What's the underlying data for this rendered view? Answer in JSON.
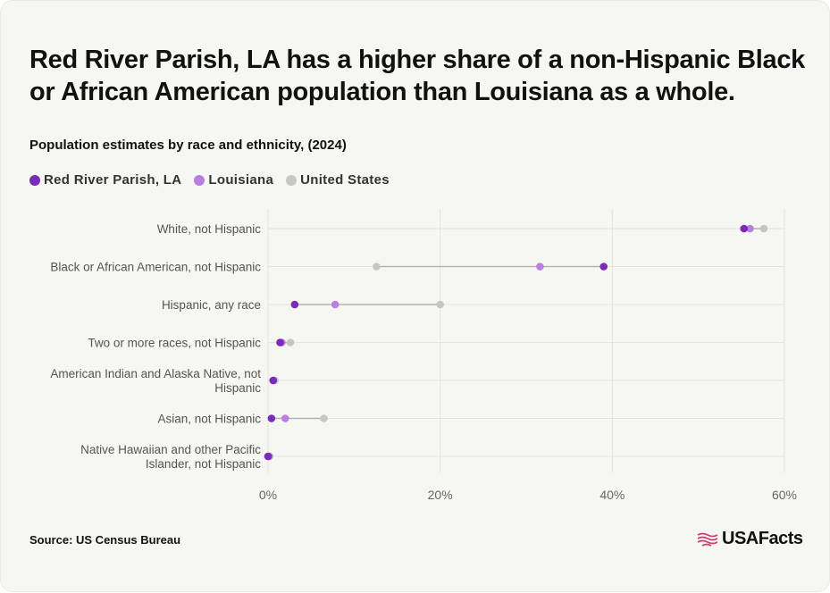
{
  "title": "Red River Parish, LA has a higher share of a non-Hispanic Black or African American population than Louisiana as a whole.",
  "subtitle": "Population estimates by race and ethnicity, (2024)",
  "source": "Source: US Census Bureau",
  "brand": "USAFacts",
  "colors": {
    "red_river": "#7b2bb5",
    "louisiana": "#b97fe0",
    "united_states": "#c6c6c2",
    "connector": "#b3b3b0",
    "grid": "#e3e3de",
    "brand_flag": "#d13b6f"
  },
  "chart_data": {
    "type": "scatter",
    "orientation": "horizontal-dot-plot",
    "title": "Red River Parish, LA has a higher share of a non-Hispanic Black or African American population than Louisiana as a whole.",
    "subtitle": "Population estimates by race and ethnicity, (2024)",
    "categories": [
      [
        "White, not Hispanic"
      ],
      [
        "Black or African American, not Hispanic"
      ],
      [
        "Hispanic, any race"
      ],
      [
        "Two or more races, not Hispanic"
      ],
      [
        "American Indian and Alaska Native, not",
        "Hispanic"
      ],
      [
        "Asian, not Hispanic"
      ],
      [
        "Native Hawaiian and other Pacific",
        "Islander, not Hispanic"
      ]
    ],
    "series": [
      {
        "name": "Red River Parish, LA",
        "color": "#7b2bb5",
        "values": [
          55.3,
          39.0,
          3.1,
          1.4,
          0.6,
          0.4,
          0.0
        ]
      },
      {
        "name": "Louisiana",
        "color": "#b97fe0",
        "values": [
          56.0,
          31.6,
          7.8,
          1.6,
          0.6,
          2.0,
          0.1
        ]
      },
      {
        "name": "United States",
        "color": "#c6c6c2",
        "values": [
          57.6,
          12.6,
          20.0,
          2.6,
          0.8,
          6.5,
          0.2
        ]
      }
    ],
    "xlim": [
      0,
      60
    ],
    "xticks": [
      "0%",
      "20%",
      "40%",
      "60%"
    ],
    "xtick_values": [
      0,
      20,
      40,
      60
    ],
    "grid": true,
    "legend": "top-left"
  }
}
